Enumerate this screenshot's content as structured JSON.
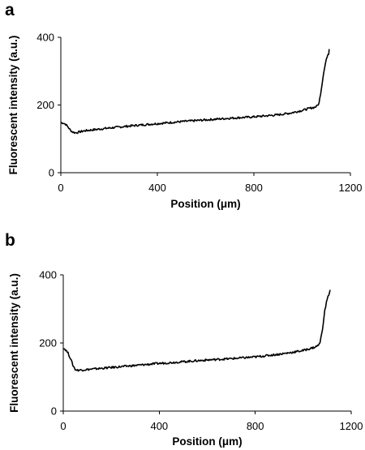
{
  "chart_data": [
    {
      "type": "line",
      "panel_label": "a",
      "xlabel": "Position (μm)",
      "ylabel": "Fluorescent intensity (a.u.)",
      "xlim": [
        0,
        1200
      ],
      "ylim": [
        0,
        400
      ],
      "x_ticks": [
        0,
        400,
        800,
        1200
      ],
      "y_ticks": [
        0,
        200,
        400
      ],
      "grid": false,
      "series": [
        {
          "x": [
            0,
            10,
            20,
            30,
            40,
            50,
            60,
            70,
            80,
            100,
            150,
            200,
            300,
            400,
            500,
            600,
            700,
            800,
            850,
            900,
            950,
            1000,
            1030,
            1050,
            1060,
            1070,
            1080,
            1090,
            1100,
            1110,
            1112
          ],
          "y": [
            148,
            147,
            143,
            135,
            125,
            120,
            118,
            119,
            121,
            124,
            128,
            132,
            139,
            145,
            151,
            156,
            161,
            165,
            168,
            171,
            176,
            184,
            190,
            193,
            196,
            205,
            250,
            300,
            335,
            352,
            365
          ]
        }
      ]
    },
    {
      "type": "line",
      "panel_label": "b",
      "xlabel": "Position (μm)",
      "ylabel": "Fluorescent intensity (a.u.)",
      "xlim": [
        0,
        1200
      ],
      "ylim": [
        0,
        400
      ],
      "x_ticks": [
        0,
        400,
        800,
        1200
      ],
      "y_ticks": [
        0,
        200,
        400
      ],
      "grid": false,
      "series": [
        {
          "x": [
            0,
            10,
            20,
            30,
            40,
            50,
            60,
            80,
            100,
            150,
            200,
            300,
            400,
            500,
            600,
            700,
            800,
            850,
            900,
            950,
            1000,
            1030,
            1050,
            1060,
            1070,
            1080,
            1090,
            1100,
            1110,
            1112
          ],
          "y": [
            185,
            180,
            170,
            155,
            135,
            122,
            120,
            121,
            122,
            125,
            128,
            134,
            140,
            145,
            150,
            154,
            159,
            163,
            167,
            172,
            178,
            184,
            188,
            192,
            200,
            240,
            295,
            330,
            348,
            356
          ]
        }
      ]
    }
  ]
}
